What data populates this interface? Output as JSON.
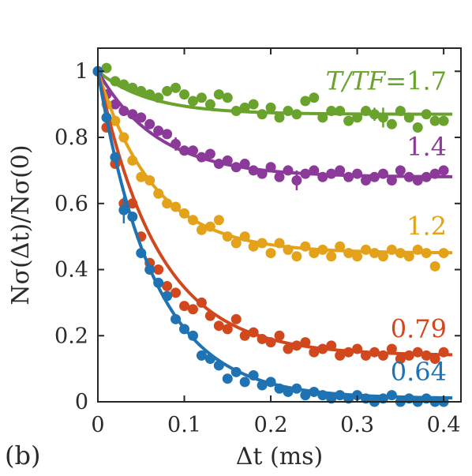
{
  "panel_label": "(b)",
  "chart_data": {
    "type": "scatter",
    "xlabel": "Δt (ms)",
    "ylabel": "Nσ(Δt)/Nσ(0)",
    "xlim": [
      0,
      0.42
    ],
    "ylim": [
      0,
      1.07
    ],
    "xticks": [
      0,
      0.1,
      0.2,
      0.3,
      0.4
    ],
    "xtick_labels": [
      "0",
      "0.1",
      "0.2",
      "0.3",
      "0.4"
    ],
    "yticks": [
      0,
      0.2,
      0.4,
      0.6,
      0.8,
      1
    ],
    "ytick_labels": [
      "0",
      "0.2",
      "0.4",
      "0.6",
      "0.8",
      "1"
    ],
    "grid": false,
    "legend_title": "T/TF=",
    "series": [
      {
        "name": "1.7",
        "color": "#6aa22e",
        "fit": {
          "form": "A + (1-A)·exp(-Δt/τ)",
          "A": 0.87,
          "tau_ms": 0.06
        },
        "x": [
          0.0,
          0.01,
          0.02,
          0.03,
          0.04,
          0.05,
          0.06,
          0.07,
          0.08,
          0.09,
          0.1,
          0.11,
          0.12,
          0.13,
          0.14,
          0.15,
          0.16,
          0.17,
          0.18,
          0.19,
          0.2,
          0.21,
          0.22,
          0.23,
          0.24,
          0.25,
          0.26,
          0.27,
          0.28,
          0.29,
          0.3,
          0.31,
          0.32,
          0.33,
          0.34,
          0.35,
          0.36,
          0.37,
          0.38,
          0.39,
          0.4
        ],
        "y": [
          1.0,
          1.01,
          0.97,
          0.96,
          0.95,
          0.94,
          0.93,
          0.92,
          0.94,
          0.95,
          0.93,
          0.91,
          0.92,
          0.9,
          0.93,
          0.92,
          0.88,
          0.89,
          0.9,
          0.87,
          0.89,
          0.86,
          0.88,
          0.87,
          0.91,
          0.92,
          0.86,
          0.88,
          0.88,
          0.85,
          0.86,
          0.88,
          0.87,
          0.86,
          0.84,
          0.88,
          0.86,
          0.83,
          0.87,
          0.85,
          0.85
        ],
        "yerr": [
          0,
          0.01,
          0.01,
          0.01,
          0.01,
          0.01,
          0.01,
          0.01,
          0.01,
          0.015,
          0.01,
          0.01,
          0.01,
          0.01,
          0.01,
          0.01,
          0.01,
          0.01,
          0.01,
          0.01,
          0.01,
          0.01,
          0.01,
          0.01,
          0.01,
          0.01,
          0.01,
          0.01,
          0.01,
          0.01,
          0.01,
          0.01,
          0.02,
          0.03,
          0.01,
          0.01,
          0.01,
          0.01,
          0.01,
          0.01,
          0.01
        ]
      },
      {
        "name": "1.4",
        "color": "#8b3a9a",
        "fit": {
          "form": "A + (1-A)·exp(-Δt/τ)",
          "A": 0.68,
          "tau_ms": 0.07
        },
        "x": [
          0.0,
          0.01,
          0.02,
          0.03,
          0.04,
          0.05,
          0.06,
          0.07,
          0.08,
          0.09,
          0.1,
          0.11,
          0.12,
          0.13,
          0.14,
          0.15,
          0.16,
          0.17,
          0.18,
          0.19,
          0.2,
          0.21,
          0.22,
          0.23,
          0.24,
          0.25,
          0.26,
          0.27,
          0.28,
          0.29,
          0.3,
          0.31,
          0.32,
          0.33,
          0.34,
          0.35,
          0.36,
          0.37,
          0.38,
          0.39,
          0.4
        ],
        "y": [
          1.0,
          0.93,
          0.9,
          0.88,
          0.87,
          0.86,
          0.84,
          0.82,
          0.81,
          0.78,
          0.76,
          0.76,
          0.74,
          0.75,
          0.72,
          0.73,
          0.71,
          0.72,
          0.7,
          0.69,
          0.71,
          0.68,
          0.7,
          0.67,
          0.69,
          0.7,
          0.68,
          0.69,
          0.7,
          0.68,
          0.69,
          0.67,
          0.68,
          0.69,
          0.67,
          0.7,
          0.68,
          0.67,
          0.68,
          0.69,
          0.7
        ],
        "yerr": [
          0,
          0.01,
          0.01,
          0.01,
          0.01,
          0.01,
          0.01,
          0.01,
          0.01,
          0.02,
          0.01,
          0.01,
          0.01,
          0.01,
          0.01,
          0.01,
          0.01,
          0.01,
          0.01,
          0.01,
          0.01,
          0.01,
          0.01,
          0.03,
          0.01,
          0.01,
          0.01,
          0.01,
          0.01,
          0.01,
          0.01,
          0.01,
          0.01,
          0.01,
          0.01,
          0.01,
          0.01,
          0.01,
          0.01,
          0.01,
          0.01
        ]
      },
      {
        "name": "1.2",
        "color": "#e3a21a",
        "fit": {
          "form": "A + (1-A)·exp(-Δt/τ)",
          "A": 0.45,
          "tau_ms": 0.065
        },
        "x": [
          0.0,
          0.01,
          0.02,
          0.03,
          0.04,
          0.05,
          0.06,
          0.07,
          0.08,
          0.09,
          0.1,
          0.11,
          0.12,
          0.13,
          0.14,
          0.15,
          0.16,
          0.17,
          0.18,
          0.19,
          0.2,
          0.21,
          0.22,
          0.23,
          0.24,
          0.25,
          0.26,
          0.27,
          0.28,
          0.29,
          0.3,
          0.31,
          0.32,
          0.33,
          0.34,
          0.35,
          0.36,
          0.37,
          0.38,
          0.39,
          0.4
        ],
        "y": [
          1.0,
          0.9,
          0.85,
          0.8,
          0.73,
          0.68,
          0.67,
          0.63,
          0.6,
          0.59,
          0.57,
          0.55,
          0.52,
          0.53,
          0.55,
          0.5,
          0.48,
          0.5,
          0.47,
          0.48,
          0.45,
          0.48,
          0.46,
          0.44,
          0.47,
          0.45,
          0.46,
          0.44,
          0.47,
          0.45,
          0.44,
          0.46,
          0.45,
          0.44,
          0.46,
          0.45,
          0.44,
          0.46,
          0.45,
          0.41,
          0.45
        ],
        "yerr": [
          0,
          0.01,
          0.01,
          0.01,
          0.01,
          0.01,
          0.01,
          0.01,
          0.01,
          0.01,
          0.01,
          0.01,
          0.01,
          0.01,
          0.01,
          0.01,
          0.01,
          0.01,
          0.01,
          0.01,
          0.01,
          0.01,
          0.01,
          0.01,
          0.01,
          0.01,
          0.01,
          0.01,
          0.01,
          0.01,
          0.01,
          0.01,
          0.01,
          0.01,
          0.01,
          0.01,
          0.01,
          0.01,
          0.01,
          0.01,
          0.01
        ]
      },
      {
        "name": "0.79",
        "color": "#d2481e",
        "fit": {
          "form": "A + (1-A)·exp(-Δt/τ)",
          "A": 0.14,
          "tau_ms": 0.07
        },
        "x": [
          0.0,
          0.01,
          0.02,
          0.03,
          0.04,
          0.05,
          0.06,
          0.07,
          0.08,
          0.09,
          0.1,
          0.11,
          0.12,
          0.13,
          0.14,
          0.15,
          0.16,
          0.17,
          0.18,
          0.19,
          0.2,
          0.21,
          0.22,
          0.23,
          0.24,
          0.25,
          0.26,
          0.27,
          0.28,
          0.29,
          0.3,
          0.31,
          0.32,
          0.33,
          0.34,
          0.35,
          0.36,
          0.37,
          0.38,
          0.39,
          0.4
        ],
        "y": [
          1.0,
          0.83,
          0.72,
          0.6,
          0.6,
          0.5,
          0.42,
          0.4,
          0.35,
          0.33,
          0.29,
          0.28,
          0.3,
          0.26,
          0.23,
          0.22,
          0.25,
          0.2,
          0.21,
          0.19,
          0.18,
          0.2,
          0.16,
          0.17,
          0.18,
          0.15,
          0.16,
          0.17,
          0.14,
          0.15,
          0.16,
          0.14,
          0.15,
          0.14,
          0.16,
          0.13,
          0.14,
          0.15,
          0.14,
          0.13,
          0.15
        ],
        "yerr": [
          0,
          0.01,
          0.01,
          0.01,
          0.01,
          0.01,
          0.01,
          0.01,
          0.01,
          0.01,
          0.01,
          0.01,
          0.01,
          0.01,
          0.01,
          0.01,
          0.01,
          0.01,
          0.01,
          0.01,
          0.01,
          0.01,
          0.01,
          0.01,
          0.01,
          0.01,
          0.01,
          0.01,
          0.01,
          0.01,
          0.01,
          0.01,
          0.01,
          0.01,
          0.01,
          0.01,
          0.01,
          0.01,
          0.01,
          0.01,
          0.01
        ]
      },
      {
        "name": "0.64",
        "color": "#1f73b2",
        "fit": {
          "form": "A + (1-A)·exp(-Δt/τ)",
          "A": 0.01,
          "tau_ms": 0.065
        },
        "x": [
          0.0,
          0.01,
          0.02,
          0.03,
          0.04,
          0.05,
          0.06,
          0.07,
          0.08,
          0.09,
          0.1,
          0.11,
          0.12,
          0.13,
          0.14,
          0.15,
          0.16,
          0.17,
          0.18,
          0.19,
          0.2,
          0.21,
          0.22,
          0.23,
          0.24,
          0.25,
          0.26,
          0.27,
          0.28,
          0.29,
          0.3,
          0.31,
          0.32,
          0.33,
          0.34,
          0.35,
          0.36,
          0.37,
          0.38,
          0.39,
          0.4
        ],
        "y": [
          1.0,
          0.86,
          0.74,
          0.58,
          0.56,
          0.45,
          0.4,
          0.36,
          0.32,
          0.25,
          0.22,
          0.2,
          0.14,
          0.13,
          0.11,
          0.07,
          0.09,
          0.06,
          0.08,
          0.05,
          0.06,
          0.04,
          0.03,
          0.04,
          0.02,
          0.03,
          0.02,
          0.01,
          0.02,
          0.01,
          0.02,
          0.01,
          0.0,
          0.01,
          0.02,
          0.0,
          0.01,
          0.0,
          0.01,
          0.0,
          0.0
        ],
        "yerr": [
          0,
          0.01,
          0.01,
          0.04,
          0.01,
          0.01,
          0.01,
          0.01,
          0.01,
          0.01,
          0.01,
          0.01,
          0.01,
          0.01,
          0.01,
          0.01,
          0.01,
          0.01,
          0.01,
          0.01,
          0.01,
          0.01,
          0.01,
          0.01,
          0.01,
          0.01,
          0.01,
          0.01,
          0.01,
          0.01,
          0.01,
          0.01,
          0.01,
          0.01,
          0.01,
          0.01,
          0.01,
          0.01,
          0.01,
          0.01,
          0.01
        ]
      }
    ]
  }
}
